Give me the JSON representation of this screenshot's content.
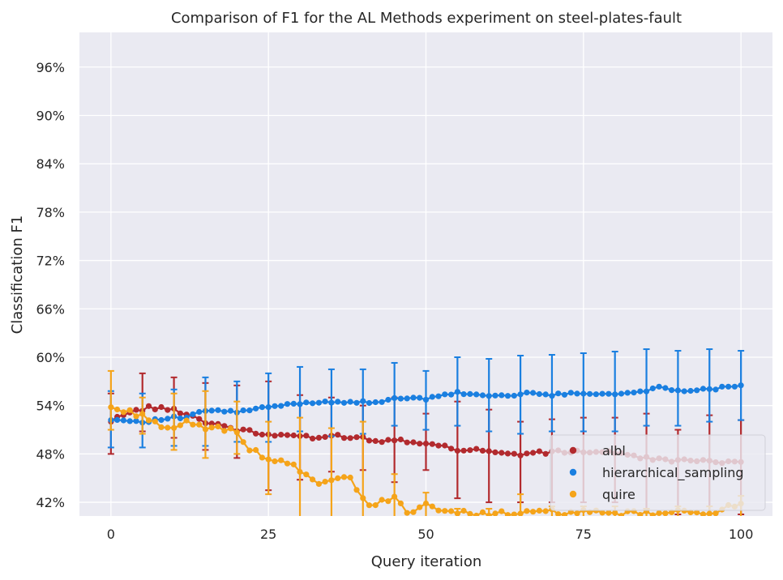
{
  "chart_data": {
    "type": "line",
    "title": "Comparison of F1 for the AL Methods experiment on steel-plates-fault",
    "xlabel": "Query iteration",
    "ylabel": "Classification F1",
    "xlim": [
      -5,
      105
    ],
    "ylim": [
      40.3,
      100.3
    ],
    "x_ticks": [
      0,
      25,
      50,
      75,
      100
    ],
    "x_tick_labels": [
      "0",
      "25",
      "50",
      "75",
      "100"
    ],
    "y_ticks": [
      42,
      48,
      54,
      60,
      66,
      72,
      78,
      84,
      90,
      96
    ],
    "y_tick_labels": [
      "42%",
      "48%",
      "54%",
      "60%",
      "66%",
      "72%",
      "78%",
      "84%",
      "90%",
      "96%"
    ],
    "grid": true,
    "legend_position": "lower-right",
    "background": "#eaeaf2",
    "series": [
      {
        "name": "albl",
        "color": "#b22a2e",
        "anchors": [
          [
            0,
            52.0
          ],
          [
            2,
            53.0
          ],
          [
            5,
            53.5
          ],
          [
            6,
            53.8
          ],
          [
            8,
            53.6
          ],
          [
            10,
            53.5
          ],
          [
            12,
            53.0
          ],
          [
            15,
            52.0
          ],
          [
            18,
            51.5
          ],
          [
            20,
            51.0
          ],
          [
            22,
            50.8
          ],
          [
            24,
            50.4
          ],
          [
            30,
            50.3
          ],
          [
            32,
            49.8
          ],
          [
            35,
            50.3
          ],
          [
            40,
            50.0
          ],
          [
            42,
            49.6
          ],
          [
            45,
            49.8
          ],
          [
            50,
            49.4
          ],
          [
            52,
            49.0
          ],
          [
            55,
            48.6
          ],
          [
            57,
            48.5
          ],
          [
            60,
            48.5
          ],
          [
            62,
            48.0
          ],
          [
            65,
            48.0
          ],
          [
            70,
            48.2
          ],
          [
            73,
            48.3
          ],
          [
            75,
            48.3
          ],
          [
            80,
            48.2
          ],
          [
            83,
            47.6
          ],
          [
            86,
            47.4
          ],
          [
            90,
            47.2
          ],
          [
            95,
            47.0
          ],
          [
            100,
            47.2
          ]
        ],
        "error_bars": [
          [
            0,
            48.0,
            55.5
          ],
          [
            5,
            50.8,
            58.0
          ],
          [
            10,
            50.0,
            57.5
          ],
          [
            15,
            48.5,
            56.8
          ],
          [
            20,
            47.5,
            56.5
          ],
          [
            25,
            43.5,
            57.0
          ],
          [
            30,
            44.8,
            55.3
          ],
          [
            35,
            45.8,
            55.0
          ],
          [
            40,
            46.0,
            54.0
          ],
          [
            45,
            44.5,
            55.0
          ],
          [
            50,
            46.0,
            53.0
          ],
          [
            55,
            42.5,
            54.5
          ],
          [
            60,
            42.0,
            53.5
          ],
          [
            65,
            42.0,
            52.0
          ],
          [
            70,
            42.0,
            52.3
          ],
          [
            75,
            42.0,
            52.5
          ],
          [
            80,
            42.0,
            52.5
          ],
          [
            85,
            41.2,
            53.0
          ],
          [
            90,
            40.5,
            51.0
          ],
          [
            95,
            40.0,
            52.8
          ],
          [
            100,
            40.5,
            52.2
          ]
        ]
      },
      {
        "name": "hierarchical_sampling",
        "color": "#1a7fe0",
        "anchors": [
          [
            0,
            52.2
          ],
          [
            2,
            52.2
          ],
          [
            5,
            52.0
          ],
          [
            10,
            52.5
          ],
          [
            12,
            52.5
          ],
          [
            15,
            53.4
          ],
          [
            18,
            53.3
          ],
          [
            20,
            53.2
          ],
          [
            25,
            53.8
          ],
          [
            30,
            54.3
          ],
          [
            35,
            54.5
          ],
          [
            40,
            54.4
          ],
          [
            42,
            54.3
          ],
          [
            45,
            55.0
          ],
          [
            50,
            54.8
          ],
          [
            55,
            55.6
          ],
          [
            60,
            55.2
          ],
          [
            65,
            55.3
          ],
          [
            67,
            55.7
          ],
          [
            70,
            55.3
          ],
          [
            75,
            55.6
          ],
          [
            80,
            55.4
          ],
          [
            85,
            55.8
          ],
          [
            87,
            56.3
          ],
          [
            90,
            55.9
          ],
          [
            95,
            56.0
          ],
          [
            100,
            56.6
          ]
        ],
        "error_bars": [
          [
            0,
            48.8,
            55.8
          ],
          [
            5,
            48.8,
            55.5
          ],
          [
            10,
            49.0,
            56.0
          ],
          [
            15,
            49.0,
            57.5
          ],
          [
            20,
            49.5,
            57.0
          ],
          [
            25,
            49.5,
            58.0
          ],
          [
            30,
            50.8,
            58.8
          ],
          [
            35,
            50.2,
            58.5
          ],
          [
            40,
            50.5,
            58.5
          ],
          [
            45,
            51.5,
            59.3
          ],
          [
            50,
            51.0,
            58.3
          ],
          [
            55,
            51.5,
            60.0
          ],
          [
            60,
            50.8,
            59.8
          ],
          [
            65,
            50.5,
            60.2
          ],
          [
            70,
            50.8,
            60.3
          ],
          [
            75,
            50.8,
            60.5
          ],
          [
            80,
            50.8,
            60.7
          ],
          [
            85,
            51.5,
            61.0
          ],
          [
            90,
            51.5,
            60.8
          ],
          [
            95,
            52.0,
            61.0
          ],
          [
            100,
            52.2,
            60.8
          ]
        ]
      },
      {
        "name": "quire",
        "color": "#f5a41a",
        "anchors": [
          [
            0,
            53.8
          ],
          [
            2,
            53.3
          ],
          [
            4,
            53.0
          ],
          [
            6,
            52.5
          ],
          [
            8,
            51.5
          ],
          [
            10,
            51.0
          ],
          [
            12,
            51.8
          ],
          [
            15,
            51.3
          ],
          [
            18,
            51.0
          ],
          [
            20,
            51.0
          ],
          [
            22,
            48.5
          ],
          [
            25,
            47.5
          ],
          [
            28,
            46.8
          ],
          [
            30,
            46.0
          ],
          [
            32,
            44.5
          ],
          [
            35,
            44.5
          ],
          [
            38,
            45.0
          ],
          [
            40,
            42.5
          ],
          [
            41,
            41.5
          ],
          [
            43,
            42.0
          ],
          [
            45,
            42.5
          ],
          [
            47,
            40.8
          ],
          [
            50,
            41.8
          ],
          [
            52,
            41.2
          ],
          [
            55,
            40.6
          ],
          [
            60,
            40.7
          ],
          [
            65,
            40.6
          ],
          [
            70,
            40.8
          ],
          [
            75,
            40.7
          ],
          [
            80,
            40.6
          ],
          [
            85,
            40.6
          ],
          [
            90,
            40.7
          ],
          [
            95,
            40.8
          ],
          [
            100,
            41.7
          ]
        ],
        "error_bars": [
          [
            0,
            51.0,
            58.3
          ],
          [
            5,
            50.5,
            55.0
          ],
          [
            10,
            48.5,
            55.5
          ],
          [
            15,
            47.5,
            55.8
          ],
          [
            20,
            48.0,
            54.5
          ],
          [
            25,
            43.0,
            52.0
          ],
          [
            30,
            40.0,
            52.5
          ],
          [
            35,
            40.0,
            51.2
          ],
          [
            40,
            40.0,
            52.0
          ],
          [
            45,
            40.0,
            45.5
          ],
          [
            50,
            40.0,
            43.2
          ],
          [
            55,
            40.0,
            41.2
          ],
          [
            60,
            40.0,
            41.2
          ],
          [
            65,
            40.0,
            43.0
          ],
          [
            70,
            40.0,
            41.5
          ],
          [
            75,
            40.0,
            41.5
          ],
          [
            80,
            40.0,
            41.5
          ],
          [
            85,
            40.0,
            41.2
          ],
          [
            90,
            40.0,
            41.5
          ],
          [
            95,
            40.0,
            41.5
          ],
          [
            100,
            40.0,
            42.8
          ]
        ]
      }
    ]
  }
}
